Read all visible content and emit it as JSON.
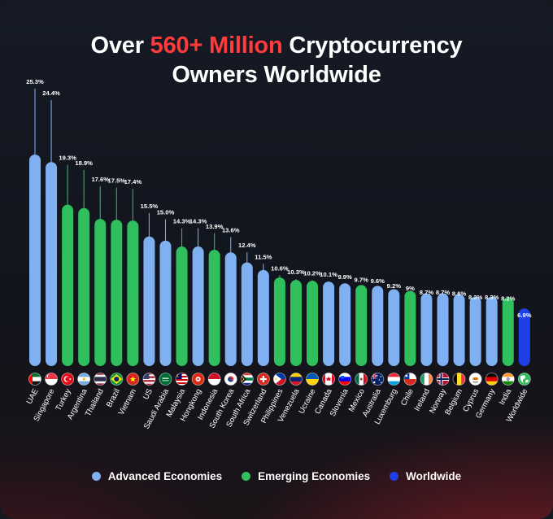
{
  "title": {
    "part1": "Over ",
    "highlight": "560+ Million",
    "part2": " Cryptocurrency",
    "line2": "Owners Worldwide"
  },
  "colors": {
    "advanced": "#7eb0f2",
    "emerging": "#2fbf5c",
    "worldwide": "#1f3fe6",
    "highlight": "#ff3b3b"
  },
  "legend": [
    {
      "label": "Advanced Economies",
      "group": "advanced"
    },
    {
      "label": "Emerging Economies",
      "group": "emerging"
    },
    {
      "label": "Worldwide",
      "group": "worldwide"
    }
  ],
  "chart_data": {
    "type": "bar",
    "title": "Over 560+ Million Cryptocurrency Owners Worldwide",
    "xlabel": "",
    "ylabel": "",
    "grid": false,
    "legend_position": "bottom",
    "categories": [
      "UAE",
      "Singapore",
      "Turkey",
      "Argentina",
      "Thailand",
      "Brazil",
      "Vietnam",
      "US",
      "Saudi Arabia",
      "Malaysia",
      "Hongkong",
      "Indonesia",
      "South Korea",
      "South Africa",
      "Switzerland",
      "Philippines",
      "Venezuela",
      "Ucraine",
      "Canada",
      "Slovenia",
      "Mexico",
      "Australia",
      "Luxemburg",
      "Chile",
      "Ireland",
      "Norway",
      "Belgium",
      "Cyprus",
      "Germany",
      "India",
      "Worldwide"
    ],
    "values": [
      25.3,
      24.4,
      19.3,
      18.9,
      17.6,
      17.5,
      17.4,
      15.5,
      15.0,
      14.3,
      14.3,
      13.9,
      13.6,
      12.4,
      11.5,
      10.6,
      10.3,
      10.2,
      10.1,
      9.9,
      9.7,
      9.6,
      9.2,
      9,
      8.7,
      8.7,
      8.6,
      8.3,
      8.3,
      8.2,
      6.9
    ],
    "value_labels": [
      "25.3%",
      "24.4%",
      "19.3%",
      "18.9%",
      "17.6%",
      "17.5%",
      "17.4%",
      "15.5%",
      "15.0%",
      "14.3%",
      "14.3%",
      "13.9%",
      "13.6%",
      "12.4%",
      "11.5%",
      "10.6%",
      "10.3%",
      "10.2%",
      "10.1%",
      "9.9%",
      "9.7%",
      "9.6%",
      "9.2%",
      "9%",
      "8.7%",
      "8.7%",
      "8.6%",
      "8.3%",
      "8.3%",
      "8.2%",
      "6.9%"
    ],
    "groups": [
      "advanced",
      "advanced",
      "emerging",
      "emerging",
      "emerging",
      "emerging",
      "emerging",
      "advanced",
      "advanced",
      "emerging",
      "advanced",
      "emerging",
      "advanced",
      "advanced",
      "advanced",
      "emerging",
      "emerging",
      "emerging",
      "advanced",
      "advanced",
      "emerging",
      "advanced",
      "advanced",
      "emerging",
      "advanced",
      "advanced",
      "advanced",
      "advanced",
      "advanced",
      "emerging",
      "worldwide"
    ],
    "flags": [
      "ae",
      "sg",
      "tr",
      "ar",
      "th",
      "br",
      "vn",
      "us",
      "sa",
      "my",
      "hk",
      "id",
      "kr",
      "za",
      "ch",
      "ph",
      "ve",
      "ua",
      "ca",
      "si",
      "mx",
      "au",
      "lu",
      "cl",
      "ie",
      "no",
      "be",
      "cy",
      "de",
      "in",
      "world"
    ],
    "ylim": [
      0,
      26
    ]
  }
}
